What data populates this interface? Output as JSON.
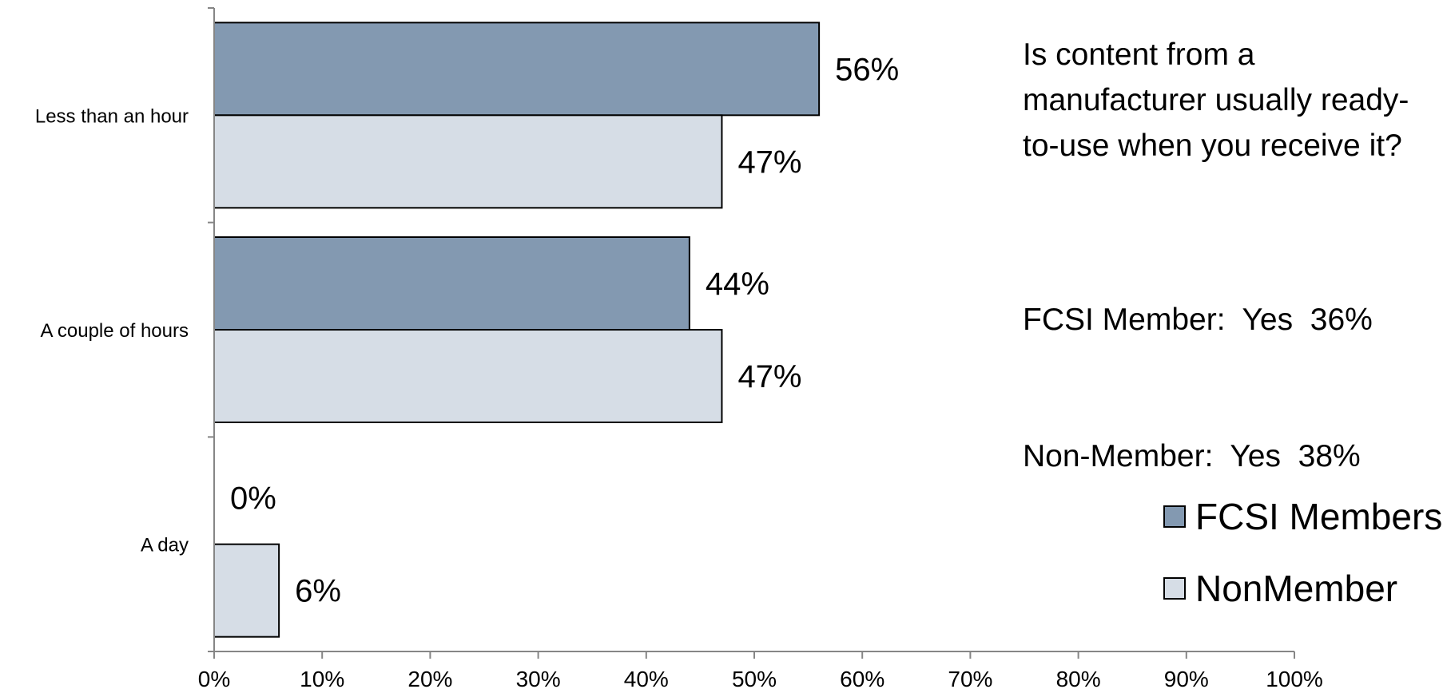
{
  "chart_data": {
    "type": "bar",
    "orientation": "horizontal",
    "categories": [
      "Less than an hour",
      "A couple of hours",
      "A day"
    ],
    "series": [
      {
        "name": "FCSI Members",
        "values": [
          56,
          44,
          0
        ],
        "labels": [
          "56%",
          "44%",
          "0%"
        ],
        "color": "#8399b1"
      },
      {
        "name": "NonMember",
        "values": [
          47,
          47,
          6
        ],
        "labels": [
          "47%",
          "47%",
          "6%"
        ],
        "color": "#d6dde6"
      }
    ],
    "x_ticks": [
      "0%",
      "10%",
      "20%",
      "30%",
      "40%",
      "50%",
      "60%",
      "70%",
      "80%",
      "90%",
      "100%"
    ],
    "xlim": [
      0,
      100
    ],
    "grid": false,
    "legend_position": "bottom-right"
  },
  "annotation": {
    "question_lines": [
      "Is content from a",
      "manufacturer usually ready-",
      "to-use when you receive it?"
    ],
    "member_stat": "FCSI Member:  Yes  36%",
    "nonmember_stat": "Non-Member:  Yes  38%"
  }
}
